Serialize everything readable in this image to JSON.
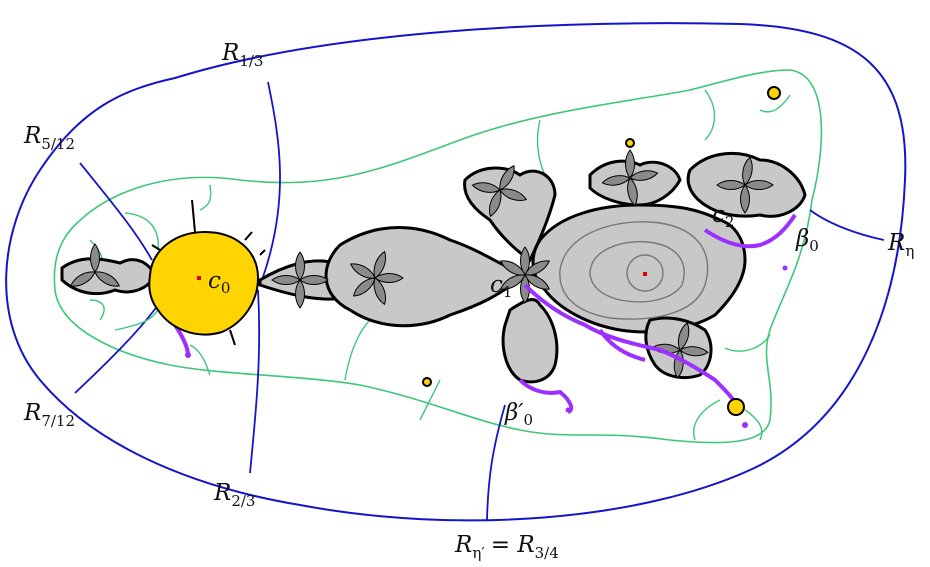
{
  "labels": {
    "r13": {
      "main": "R",
      "sub": "1/3"
    },
    "r512": {
      "main": "R",
      "sub": "5/12"
    },
    "r712": {
      "main": "R",
      "sub": "7/12"
    },
    "r23": {
      "main": "R",
      "sub": "2/3"
    },
    "reta": {
      "main": "R",
      "sub": "η"
    },
    "reta_prime": {
      "main": "R",
      "sub": "η′",
      "rest": "= R",
      "rest_sub": "3/4"
    },
    "c0": {
      "main": "c",
      "sub": "0"
    },
    "c1": {
      "main": "c",
      "sub": "1"
    },
    "c2": {
      "main": "c",
      "sub": "2"
    },
    "beta0": {
      "main": "β",
      "sub": "0"
    },
    "beta0_prime": {
      "main": "β′",
      "sub": "0"
    }
  },
  "colors": {
    "outer_curve": "#1414c8",
    "rays": "#1414c8",
    "equipotential": "#3cc878",
    "julia_fill": "#c8c8c8",
    "julia_edge": "#000000",
    "basin_fill": "#ffd400",
    "highlight": "#9b30ff",
    "contour": "#777777",
    "point": "#e00000"
  }
}
